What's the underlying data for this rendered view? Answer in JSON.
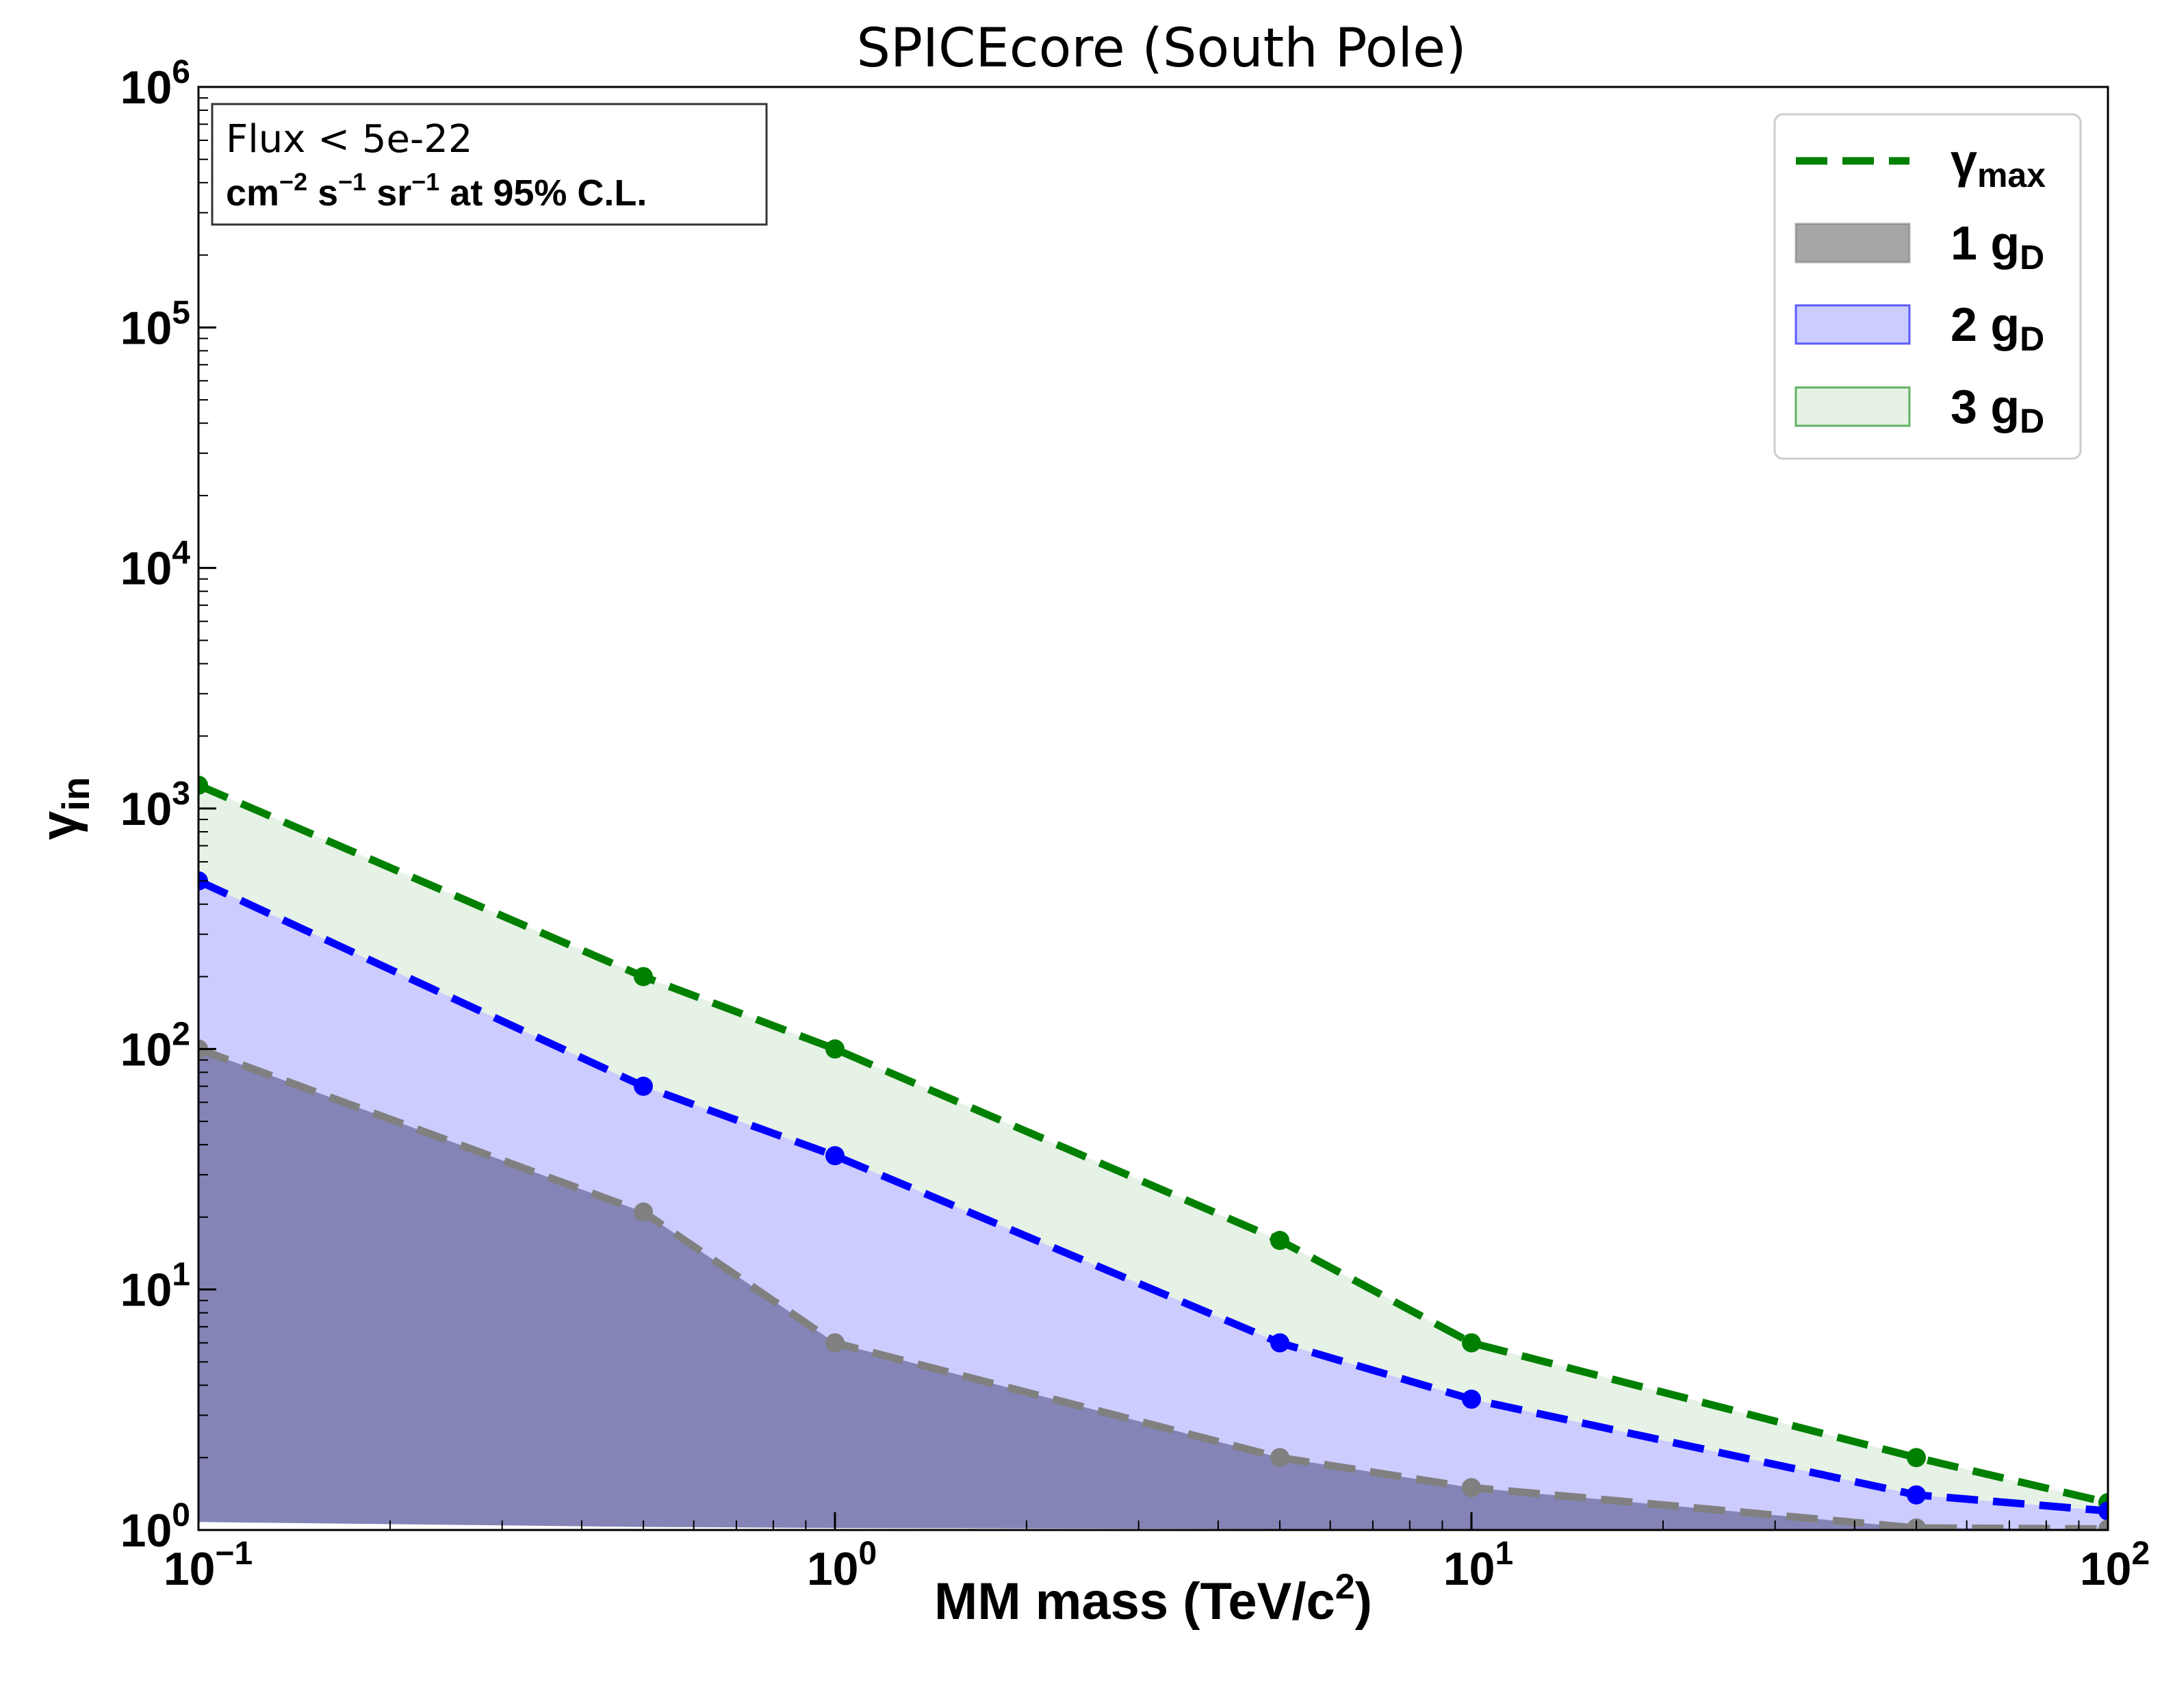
{
  "chart_data": {
    "type": "area",
    "title": "SPICEcore (South Pole)",
    "xlabel": {
      "main": "MM mass (TeV/c",
      "sup": "2",
      "tail": ")"
    },
    "ylabel": {
      "main": "γ",
      "sub": "in"
    },
    "xscale": "log",
    "yscale": "log",
    "xlim": [
      0.1,
      100
    ],
    "ylim": [
      1,
      1000000
    ],
    "grid": false,
    "x_ticks": [
      {
        "base": "10",
        "exp": "−1"
      },
      {
        "base": "10",
        "exp": "0"
      },
      {
        "base": "10",
        "exp": "1"
      },
      {
        "base": "10",
        "exp": "2"
      }
    ],
    "y_ticks": [
      {
        "base": "10",
        "exp": "0"
      },
      {
        "base": "10",
        "exp": "1"
      },
      {
        "base": "10",
        "exp": "2"
      },
      {
        "base": "10",
        "exp": "3"
      },
      {
        "base": "10",
        "exp": "4"
      },
      {
        "base": "10",
        "exp": "5"
      },
      {
        "base": "10",
        "exp": "6"
      }
    ],
    "annotation": {
      "line1": "Flux < 5e-22",
      "line2": [
        {
          "t": "cm"
        },
        {
          "t": "−2",
          "sup": true
        },
        {
          "t": " s"
        },
        {
          "t": "−1",
          "sup": true
        },
        {
          "t": " sr"
        },
        {
          "t": "−1",
          "sup": true
        },
        {
          "t": " at 95% C.L."
        }
      ],
      "position": "top-left"
    },
    "legend_position": "top-right",
    "x": [
      0.1,
      0.5,
      1,
      5,
      10,
      50,
      100
    ],
    "series": [
      {
        "name": {
          "main": "γ",
          "sub": "max"
        },
        "kind": "dashed-line",
        "color": "#008000",
        "values": [
          1250,
          200,
          100,
          16,
          6,
          2,
          1.3
        ]
      },
      {
        "kind": "dashed-line",
        "color": "#0000ff",
        "values": [
          500,
          70,
          36,
          6,
          3.5,
          1.4,
          1.2
        ]
      },
      {
        "kind": "dashed-line",
        "color": "#808080",
        "values": [
          100,
          21,
          6,
          2,
          1.5,
          1.02,
          1.01
        ]
      }
    ],
    "bands": [
      {
        "name": {
          "main": "1 g",
          "sub": "D"
        },
        "color": "#808080",
        "opacity": 0.7,
        "upper": [
          100,
          21,
          6,
          2,
          1.5,
          1.02,
          1.01
        ],
        "lower": [
          1.08,
          1.03,
          1.02,
          1.01,
          1.005,
          1.0,
          1.0
        ]
      },
      {
        "name": {
          "main": "2 g",
          "sub": "D"
        },
        "color": "#0000ff",
        "opacity": 0.2,
        "upper": [
          500,
          70,
          36,
          6,
          3.5,
          1.4,
          1.2
        ],
        "lower": [
          1.08,
          1.03,
          1.02,
          1.01,
          1.005,
          1.0,
          1.0
        ]
      },
      {
        "name": {
          "main": "3 g",
          "sub": "D"
        },
        "color": "#008000",
        "opacity": 0.1,
        "upper": [
          1250,
          200,
          100,
          16,
          6,
          2,
          1.3
        ],
        "lower": [
          500,
          70,
          36,
          6,
          3.5,
          1.4,
          1.2
        ]
      }
    ]
  }
}
